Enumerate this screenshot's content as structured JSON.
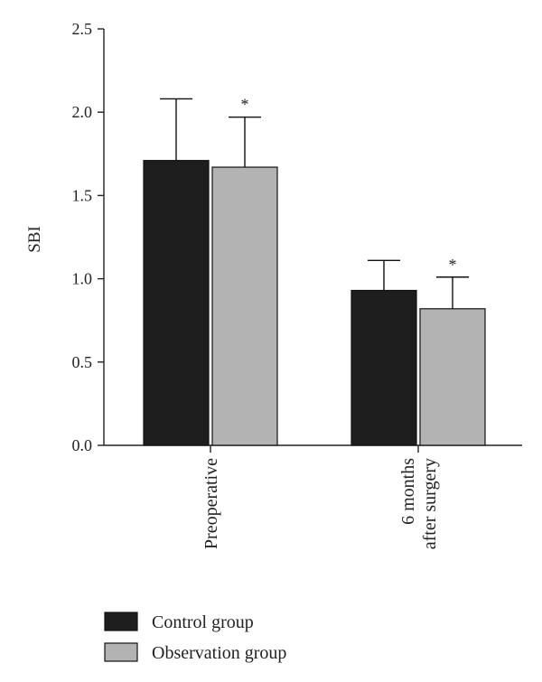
{
  "chart_data": {
    "type": "bar",
    "categories": [
      "Preoperative",
      "6 months after surgery"
    ],
    "category_label_lines": [
      [
        "Preoperative"
      ],
      [
        "6 months",
        "after surgery"
      ]
    ],
    "series": [
      {
        "name": "Control group",
        "values": [
          1.71,
          0.93
        ],
        "errors": [
          0.37,
          0.18
        ],
        "color": "#1e1e1e"
      },
      {
        "name": "Observation group",
        "values": [
          1.67,
          0.82
        ],
        "errors": [
          0.3,
          0.19
        ],
        "color": "#b3b3b3"
      }
    ],
    "ylabel": "SBI",
    "xlabel": "",
    "ylim": [
      0,
      2.5
    ],
    "yticks": [
      "0.0",
      "0.5",
      "1.0",
      "1.5",
      "2.0",
      "2.5"
    ],
    "significance": [
      [
        "",
        "*"
      ],
      [
        "",
        "*"
      ]
    ],
    "legend_position": "bottom-left",
    "grid": false
  }
}
